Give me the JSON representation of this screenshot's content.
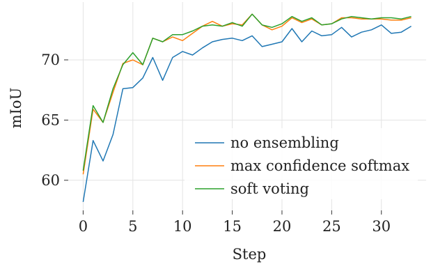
{
  "chart_data": {
    "type": "line",
    "xlabel": "Step",
    "ylabel": "mIoU",
    "xlim": [
      -1.5,
      34.5
    ],
    "ylim": [
      57.5,
      74.8
    ],
    "xticks": [
      0,
      5,
      10,
      15,
      20,
      25,
      30
    ],
    "yticks": [
      60,
      65,
      70
    ],
    "grid": true,
    "legend_position": "center-right",
    "x": [
      0,
      1,
      2,
      3,
      4,
      5,
      6,
      7,
      8,
      9,
      10,
      11,
      12,
      13,
      14,
      15,
      16,
      17,
      18,
      19,
      20,
      21,
      22,
      23,
      24,
      25,
      26,
      27,
      28,
      29,
      30,
      31,
      32,
      33
    ],
    "series": [
      {
        "name": "no ensembling",
        "color": "#1f77b4",
        "values": [
          58.2,
          63.3,
          61.6,
          63.8,
          67.6,
          67.7,
          68.5,
          70.2,
          68.3,
          70.2,
          70.7,
          70.4,
          71.0,
          71.5,
          71.7,
          71.8,
          71.6,
          72.0,
          71.1,
          71.3,
          71.5,
          72.6,
          71.5,
          72.4,
          72.0,
          72.1,
          72.7,
          71.9,
          72.3,
          72.5,
          72.9,
          72.2,
          72.3,
          72.8
        ]
      },
      {
        "name": "max confidence softmax",
        "color": "#ff7f0e",
        "values": [
          60.5,
          65.9,
          64.8,
          67.3,
          69.7,
          70.0,
          69.6,
          71.8,
          71.5,
          71.9,
          71.6,
          72.2,
          72.8,
          73.2,
          72.8,
          73.0,
          72.9,
          73.8,
          72.9,
          72.5,
          72.8,
          73.5,
          73.1,
          73.4,
          72.9,
          73.0,
          73.5,
          73.5,
          73.4,
          73.4,
          73.4,
          73.3,
          73.3,
          73.5
        ]
      },
      {
        "name": "soft voting",
        "color": "#2ca02c",
        "values": [
          60.8,
          66.2,
          64.8,
          67.6,
          69.6,
          70.6,
          69.6,
          71.8,
          71.5,
          72.1,
          72.1,
          72.4,
          72.8,
          72.9,
          72.8,
          73.1,
          72.8,
          73.8,
          72.9,
          72.7,
          73.0,
          73.6,
          73.2,
          73.5,
          72.9,
          73.0,
          73.4,
          73.6,
          73.5,
          73.4,
          73.5,
          73.5,
          73.4,
          73.6
        ]
      }
    ]
  }
}
